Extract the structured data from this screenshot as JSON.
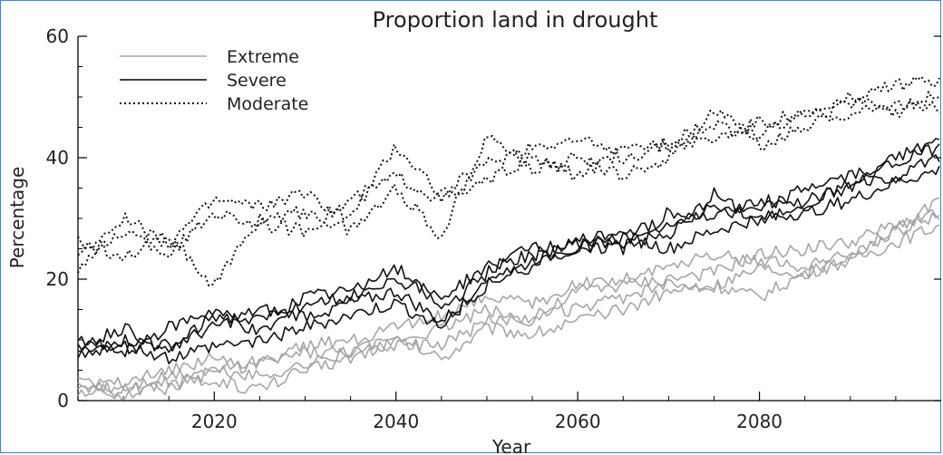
{
  "chart_data": {
    "type": "line",
    "title": "Proportion land in drought",
    "xlabel": "Year",
    "ylabel": "Percentage",
    "xlim": [
      2005,
      2100
    ],
    "ylim": [
      0,
      60
    ],
    "xticks": [
      2020,
      2040,
      2060,
      2080
    ],
    "yticks": [
      0,
      20,
      40,
      60
    ],
    "legend_position": "top-left",
    "grid": false,
    "legend": [
      {
        "label": "Extreme",
        "style": "solid",
        "color": "#a6a6a6"
      },
      {
        "label": "Severe",
        "style": "solid",
        "color": "#000000"
      },
      {
        "label": "Moderate",
        "style": "dotted",
        "color": "#000000"
      }
    ],
    "x": [
      2005,
      2010,
      2015,
      2020,
      2025,
      2030,
      2035,
      2040,
      2045,
      2050,
      2055,
      2060,
      2065,
      2070,
      2075,
      2080,
      2085,
      2090,
      2095,
      2100
    ],
    "series": [
      {
        "group": "Extreme",
        "color": "#a6a6a6",
        "dash": "solid",
        "values": [
          2,
          2,
          4,
          5,
          4,
          6,
          8,
          9,
          9,
          13,
          14,
          15,
          17,
          19,
          19,
          22,
          21,
          24,
          28,
          31
        ]
      },
      {
        "group": "Extreme",
        "color": "#a6a6a6",
        "dash": "solid",
        "values": [
          3,
          1,
          3,
          3,
          2,
          5,
          7,
          10,
          7,
          12,
          11,
          13,
          15,
          18,
          19,
          17,
          21,
          23,
          26,
          29
        ]
      },
      {
        "group": "Extreme",
        "color": "#a6a6a6",
        "dash": "solid",
        "values": [
          1,
          2,
          2,
          5,
          6,
          8,
          8,
          10,
          12,
          15,
          13,
          18,
          19,
          20,
          21,
          24,
          25,
          26,
          29,
          31
        ]
      },
      {
        "group": "Extreme",
        "color": "#a6a6a6",
        "dash": "solid",
        "values": [
          3,
          3,
          5,
          7,
          6,
          9,
          10,
          12,
          14,
          17,
          16,
          19,
          20,
          22,
          24,
          23,
          22,
          24,
          28,
          33
        ]
      },
      {
        "group": "Severe",
        "color": "#111111",
        "dash": "solid",
        "values": [
          9,
          12,
          8,
          14,
          13,
          17,
          18,
          20,
          17,
          22,
          24,
          26,
          28,
          29,
          32,
          31,
          35,
          37,
          39,
          42
        ]
      },
      {
        "group": "Severe",
        "color": "#111111",
        "dash": "solid",
        "values": [
          7,
          10,
          9,
          12,
          15,
          14,
          16,
          18,
          13,
          19,
          23,
          25,
          27,
          25,
          28,
          30,
          31,
          33,
          36,
          38
        ]
      },
      {
        "group": "Severe",
        "color": "#111111",
        "dash": "solid",
        "values": [
          10,
          8,
          12,
          15,
          11,
          16,
          17,
          22,
          15,
          21,
          26,
          24,
          26,
          27,
          34,
          29,
          33,
          35,
          40,
          43
        ]
      },
      {
        "group": "Severe",
        "color": "#111111",
        "dash": "solid",
        "values": [
          8,
          9,
          7,
          9,
          10,
          12,
          14,
          16,
          12,
          20,
          22,
          27,
          25,
          31,
          30,
          33,
          32,
          36,
          37,
          40
        ]
      },
      {
        "group": "Moderate",
        "color": "#111111",
        "dash": "dotted",
        "values": [
          24,
          30,
          26,
          33,
          32,
          34,
          30,
          42,
          34,
          39,
          42,
          43,
          40,
          42,
          43,
          46,
          47,
          49,
          52,
          53
        ]
      },
      {
        "group": "Moderate",
        "color": "#111111",
        "dash": "dotted",
        "values": [
          26,
          24,
          27,
          19,
          30,
          31,
          28,
          35,
          27,
          44,
          38,
          40,
          37,
          40,
          48,
          42,
          45,
          50,
          47,
          51
        ]
      },
      {
        "group": "Moderate",
        "color": "#111111",
        "dash": "dotted",
        "values": [
          22,
          28,
          24,
          31,
          29,
          28,
          33,
          37,
          33,
          36,
          40,
          37,
          41,
          43,
          45,
          44,
          47,
          47,
          49,
          48
        ]
      }
    ]
  }
}
